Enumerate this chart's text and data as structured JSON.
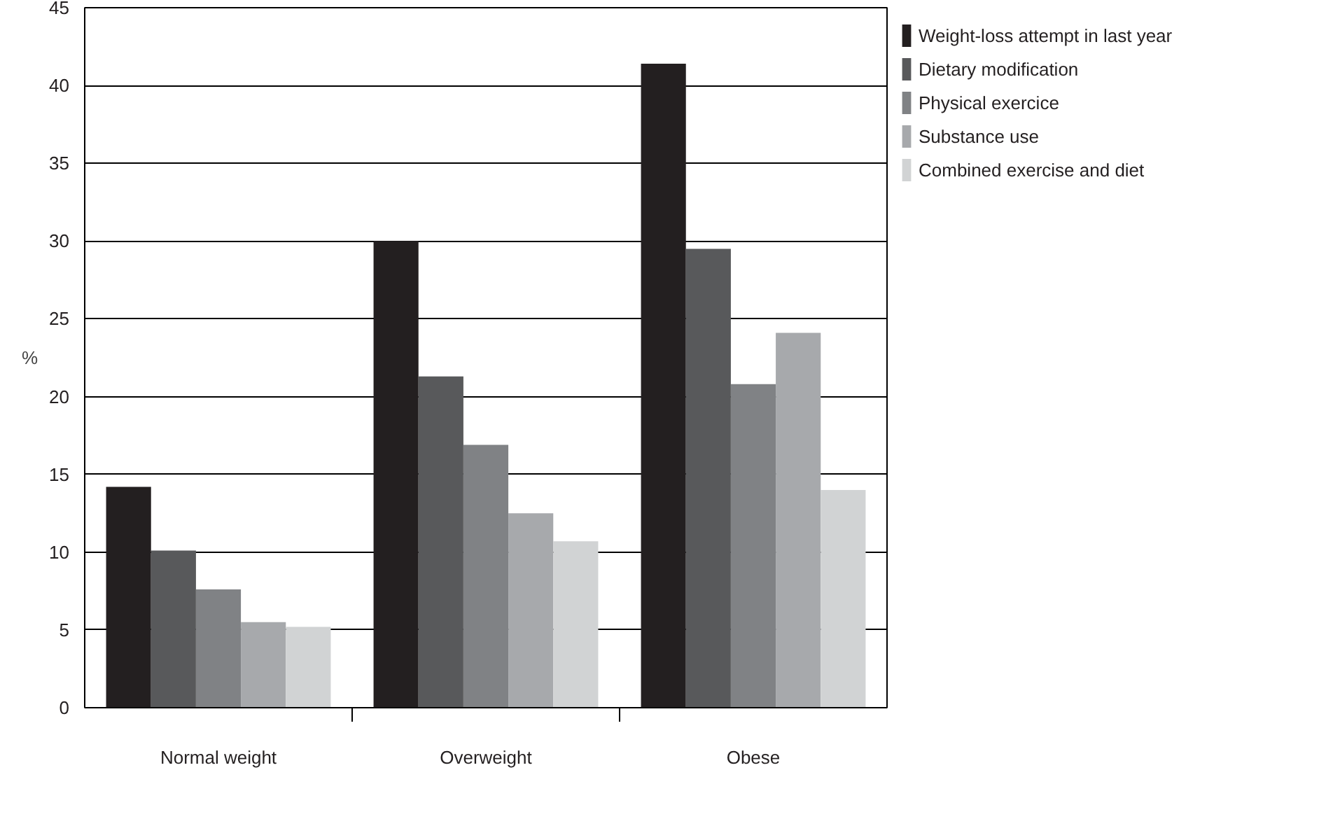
{
  "chart_data": {
    "type": "bar",
    "ylabel": "%",
    "categories": [
      "Normal weight",
      "Overweight",
      "Obese"
    ],
    "series": [
      {
        "name": "Weight-loss attempt in last year",
        "color": "#231f20",
        "values": [
          14.2,
          30.0,
          41.4
        ]
      },
      {
        "name": "Dietary modification",
        "color": "#58595b",
        "values": [
          10.1,
          21.3,
          29.5
        ]
      },
      {
        "name": "Physical exercice",
        "color": "#808285",
        "values": [
          7.6,
          16.9,
          20.8
        ]
      },
      {
        "name": "Substance use",
        "color": "#a7a9ac",
        "values": [
          5.5,
          12.5,
          24.1
        ]
      },
      {
        "name": "Combined exercise and diet",
        "color": "#d1d3d4",
        "values": [
          5.2,
          10.7,
          14.0
        ]
      }
    ],
    "ylim": [
      0,
      45
    ],
    "yticks": [
      0,
      5,
      10,
      15,
      20,
      25,
      30,
      35,
      40,
      45
    ],
    "grid": "y",
    "legend": "top right"
  }
}
